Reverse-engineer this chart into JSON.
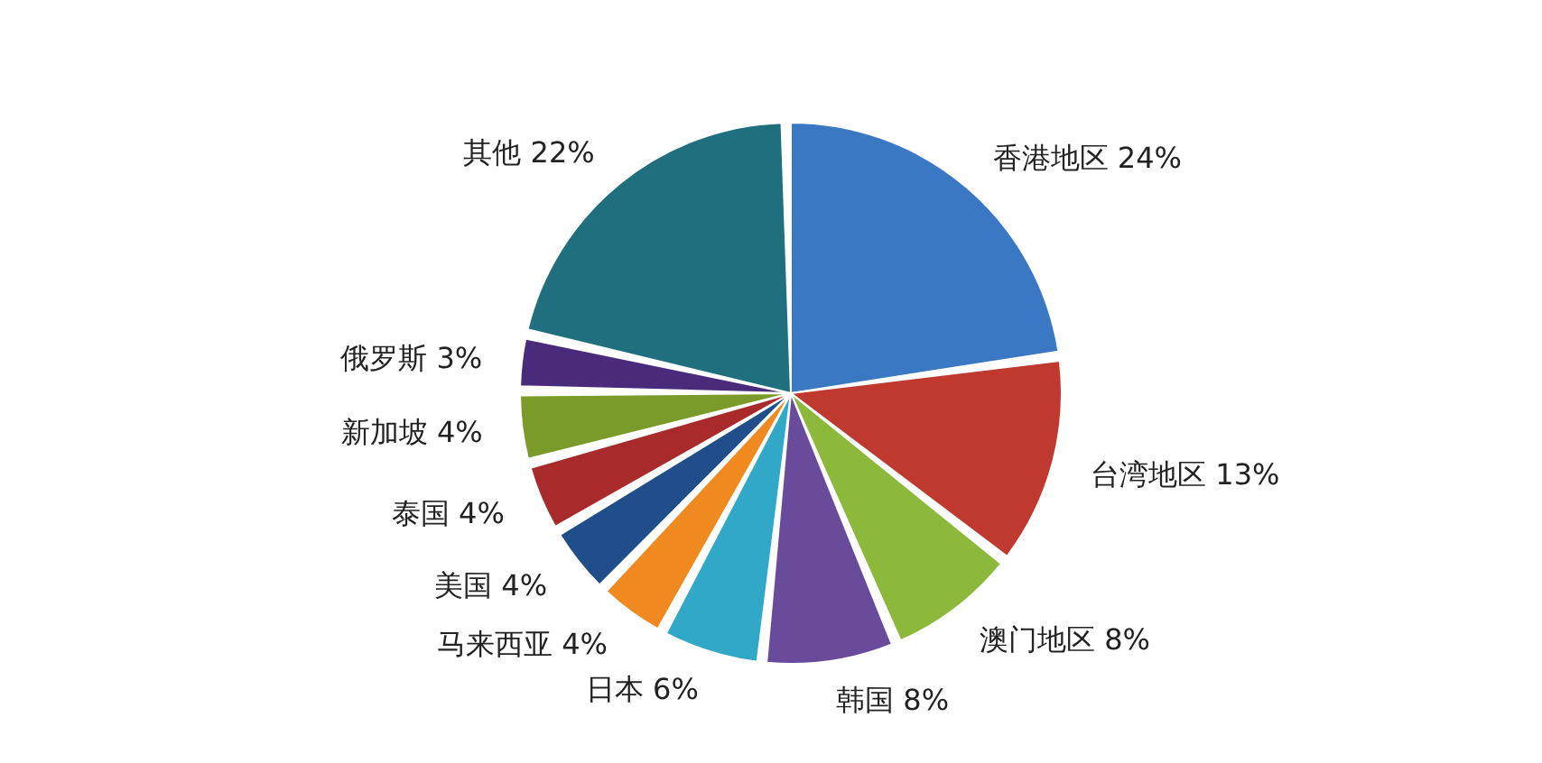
{
  "chart_data": {
    "type": "pie",
    "categories": [
      "香港地区",
      "台湾地区",
      "澳门地区",
      "韩国",
      "日本",
      "马来西亚",
      "美国",
      "泰国",
      "新加坡",
      "俄罗斯",
      "其他"
    ],
    "values": [
      24,
      13,
      8,
      8,
      6,
      4,
      4,
      4,
      4,
      3,
      22
    ],
    "value_labels": [
      "24%",
      "13%",
      "8%",
      "8%",
      "6%",
      "4%",
      "4%",
      "4%",
      "4%",
      "3%",
      "22%"
    ],
    "colors": [
      "#3a78c4",
      "#c0392f",
      "#8cb83c",
      "#6a4a9a",
      "#31a8c8",
      "#f08a20",
      "#1f4e8a",
      "#a82a2a",
      "#7a9a2a",
      "#4a2a7a",
      "#1f6f7f"
    ],
    "legend": false
  }
}
